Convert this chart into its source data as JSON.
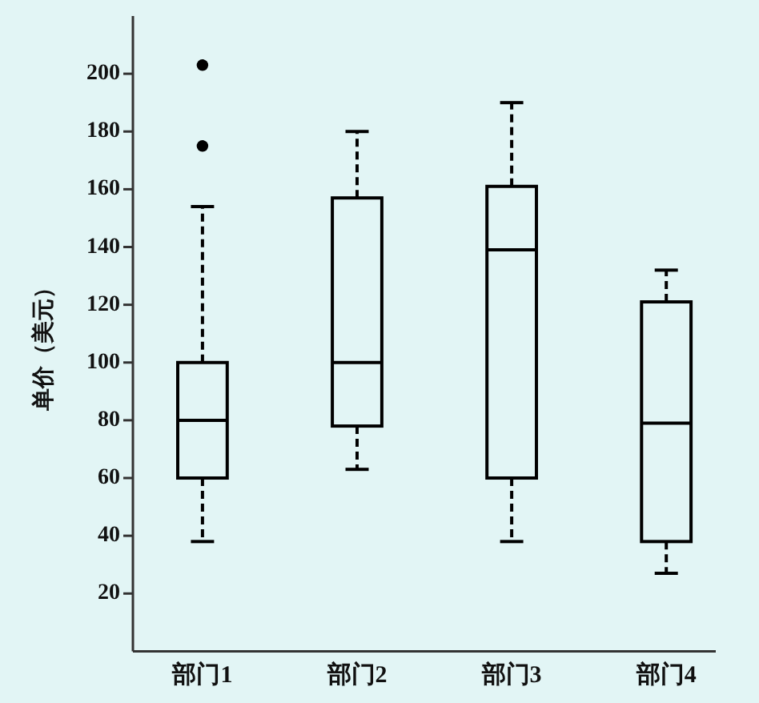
{
  "chart_data": {
    "type": "box",
    "ylabel": "单价（美元）",
    "categories": [
      "部门1",
      "部门2",
      "部门3",
      "部门4"
    ],
    "boxes": [
      {
        "low": 38,
        "q1": 60,
        "median": 80,
        "q3": 100,
        "high": 154,
        "outliers": [
          203,
          175
        ]
      },
      {
        "low": 63,
        "q1": 78,
        "median": 100,
        "q3": 157,
        "high": 180
      },
      {
        "low": 38,
        "q1": 60,
        "median": 139,
        "q3": 161,
        "high": 190
      },
      {
        "low": 27,
        "q1": 38,
        "median": 79,
        "q3": 121,
        "high": 132
      }
    ],
    "color": "#000000",
    "line_style": "dashed",
    "marker": "circle",
    "ylim": [
      0,
      220
    ],
    "yticks": [
      20,
      40,
      60,
      80,
      100,
      120,
      140,
      160,
      180,
      200
    ]
  }
}
